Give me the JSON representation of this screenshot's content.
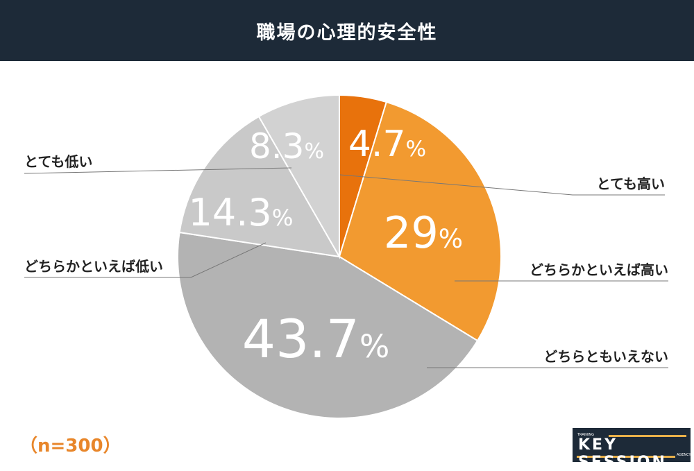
{
  "title": "職場の心理的安全性",
  "sample_note": "（n=300）",
  "logo": {
    "top": "TRAINING",
    "main": "KEY SESSION",
    "bottom": "AGENCY"
  },
  "chart_data": {
    "type": "pie",
    "title": "職場の心理的安全性",
    "start": "top, clockwise",
    "slices": [
      {
        "label": "とても高い",
        "value": 4.7,
        "display": "4.7",
        "color": "#e8720c"
      },
      {
        "label": "どちらかといえば高い",
        "value": 29,
        "display": "29",
        "color": "#f29a30"
      },
      {
        "label": "どちらともいえない",
        "value": 43.7,
        "display": "43.7",
        "color": "#b3b3b3"
      },
      {
        "label": "どちらかといえば低い",
        "value": 14.3,
        "display": "14.3",
        "color": "#c9c9c9"
      },
      {
        "label": "とても低い",
        "value": 8.3,
        "display": "8.3",
        "color": "#d2d2d2"
      }
    ],
    "unit": "%"
  }
}
